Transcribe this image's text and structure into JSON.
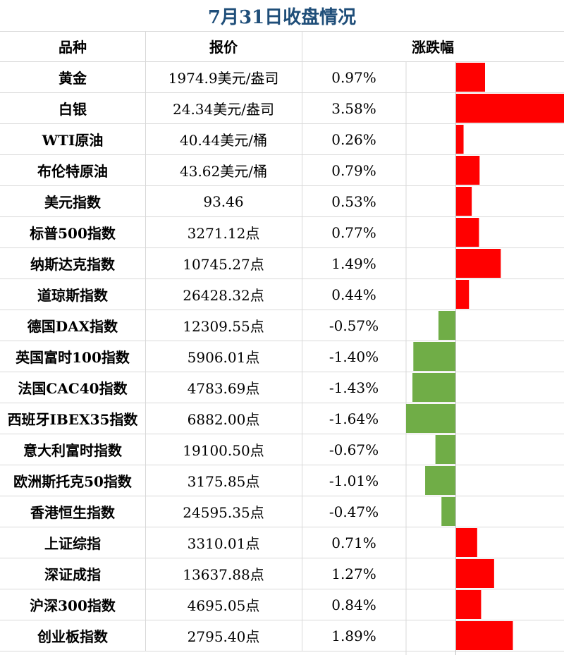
{
  "title": "7月31日收盘情况",
  "headers": {
    "name": "品种",
    "price": "报价",
    "change": "涨跌幅"
  },
  "colors": {
    "up": "#ff0000",
    "down": "#70ad47",
    "title": "#1f4e79",
    "grid": "#d9d9d9"
  },
  "chart_data": {
    "type": "bar",
    "title": "7月31日收盘情况",
    "categories": [
      "黄金",
      "白银",
      "WTI原油",
      "布伦特原油",
      "美元指数",
      "标普500指数",
      "纳斯达克指数",
      "道琼斯指数",
      "德国DAX指数",
      "英国富时100指数",
      "法国CAC40指数",
      "西班牙IBEX35指数",
      "意大利富时指数",
      "欧洲斯托克50指数",
      "香港恒生指数",
      "上证综指",
      "深证成指",
      "沪深300指数",
      "创业板指数"
    ],
    "prices": [
      "1974.9美元/盎司",
      "24.34美元/盎司",
      "40.44美元/桶",
      "43.62美元/桶",
      "93.46",
      "3271.12点",
      "10745.27点",
      "26428.32点",
      "12309.55点",
      "5906.01点",
      "4783.69点",
      "6882.00点",
      "19100.50点",
      "3175.85点",
      "24595.35点",
      "3310.01点",
      "13637.88点",
      "4695.05点",
      "2795.40点"
    ],
    "change_labels": [
      "0.97%",
      "3.58%",
      "0.26%",
      "0.79%",
      "0.53%",
      "0.77%",
      "1.49%",
      "0.44%",
      "-0.57%",
      "-1.40%",
      "-1.43%",
      "-1.64%",
      "-0.67%",
      "-1.01%",
      "-0.47%",
      "0.71%",
      "1.27%",
      "0.84%",
      "1.89%"
    ],
    "values": [
      0.97,
      3.58,
      0.26,
      0.79,
      0.53,
      0.77,
      1.49,
      0.44,
      -0.57,
      -1.4,
      -1.43,
      -1.64,
      -0.67,
      -1.01,
      -0.47,
      0.71,
      1.27,
      0.84,
      1.89
    ],
    "xlim": [
      -1.64,
      3.58
    ]
  }
}
